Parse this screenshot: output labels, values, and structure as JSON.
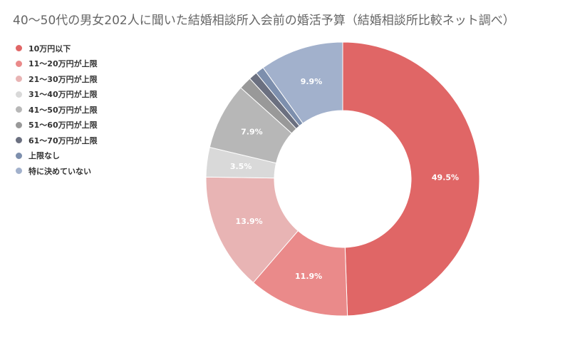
{
  "chart_data": {
    "type": "pie",
    "variant": "donut",
    "title": "40～50代の男女202人に聞いた結婚相談所入会前の婚活予算（結婚相談所比較ネット調べ）",
    "categories": [
      "10万円以下",
      "11～20万円が上限",
      "21～30万円が上限",
      "31～40万円が上限",
      "41～50万円が上限",
      "51～60万円が上限",
      "61～70万円が上限",
      "上限なし",
      "特に決めていない"
    ],
    "values": [
      49.5,
      11.9,
      13.9,
      3.5,
      7.9,
      1.5,
      1.0,
      1.0,
      9.9
    ],
    "value_labels": [
      "49.5%",
      "11.9%",
      "13.9%",
      "3.5%",
      "7.9%",
      "",
      "",
      "",
      "9.9%"
    ],
    "colors": [
      "#e06666",
      "#ea8a8a",
      "#e8b4b4",
      "#d9d9d9",
      "#b7b7b7",
      "#999999",
      "#6b7080",
      "#7d8fad",
      "#a2b1cc"
    ],
    "label_colors": [
      "#ffffff",
      "#ffffff",
      "#ffffff",
      "#ffffff",
      "#ffffff",
      "#ffffff",
      "#ffffff",
      "#ffffff",
      "#ffffff"
    ],
    "legend_position": "left",
    "start_angle": "top",
    "direction": "clockwise"
  }
}
